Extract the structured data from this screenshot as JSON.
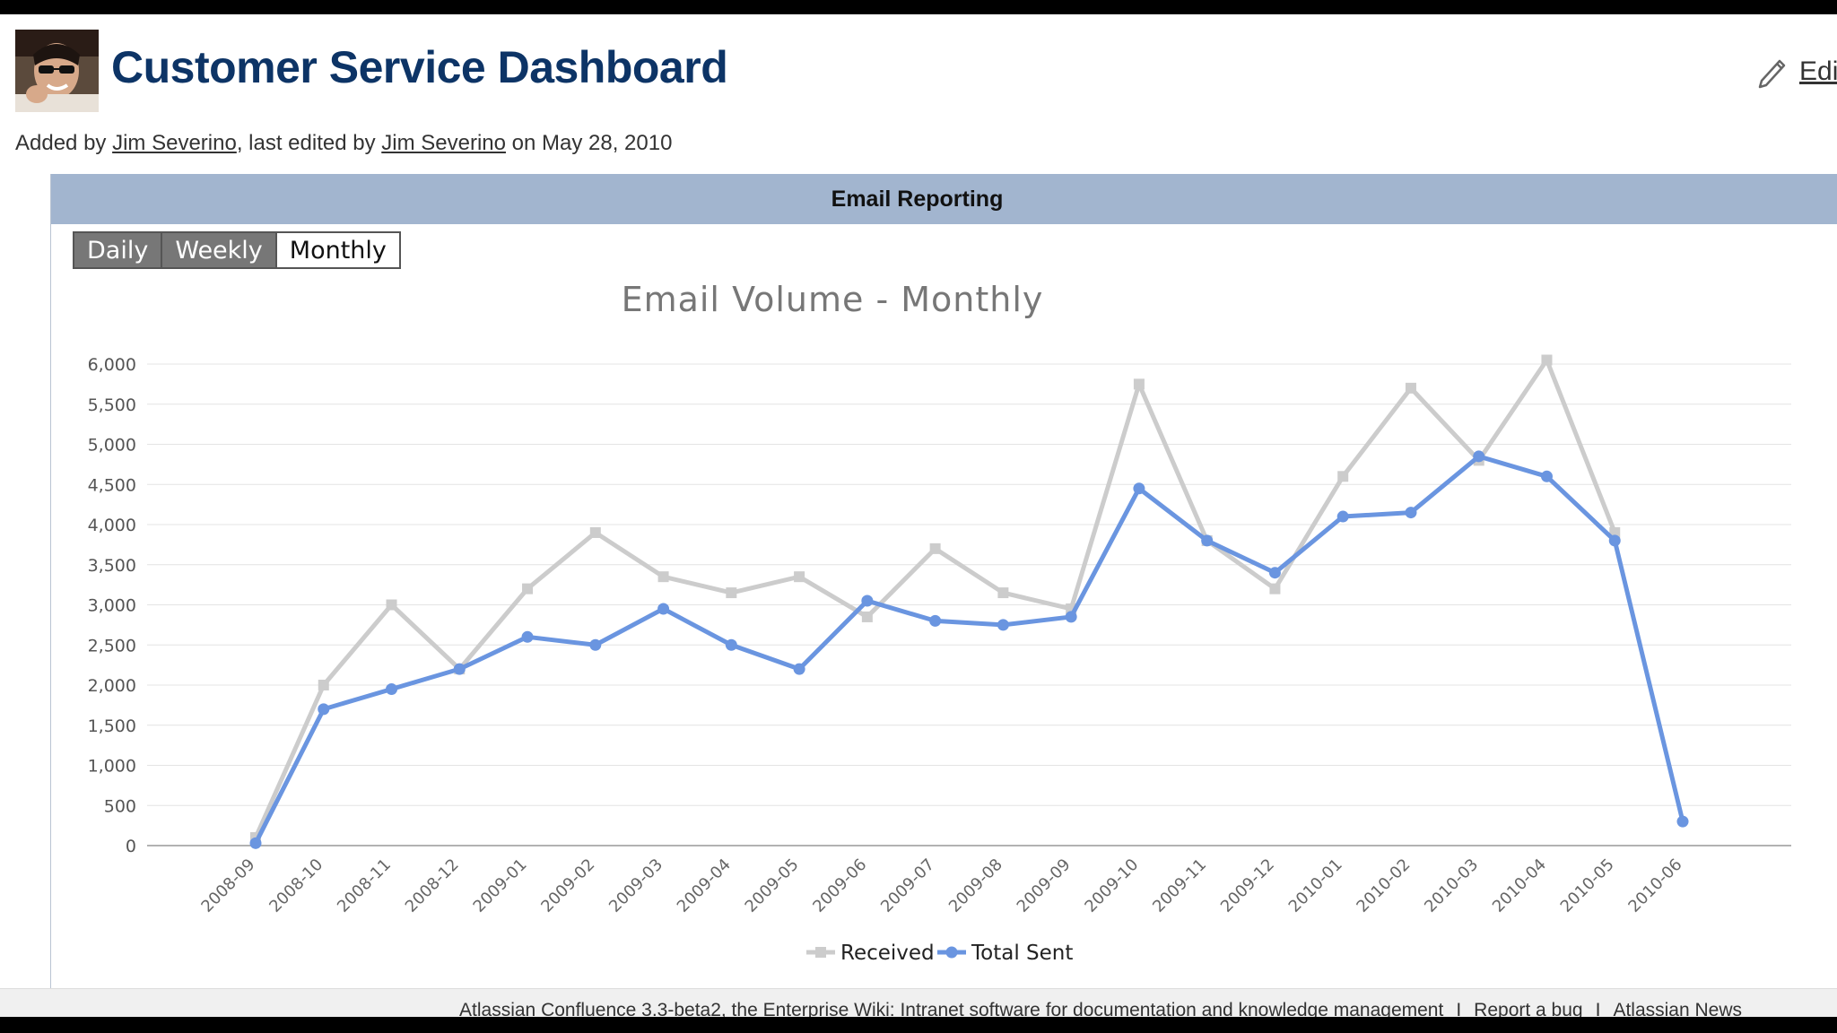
{
  "page": {
    "title": "Customer Service Dashboard",
    "edit_label": "Edi",
    "byline": {
      "added_by_prefix": "Added by ",
      "added_by_user": "Jim Severino",
      "last_edited_prefix": ", last edited by ",
      "last_edited_user": "Jim Severino",
      "date_text": " on May 28, 2010"
    }
  },
  "panel": {
    "header": "Email Reporting",
    "tabs": [
      {
        "label": "Daily",
        "active": false
      },
      {
        "label": "Weekly",
        "active": false
      },
      {
        "label": "Monthly",
        "active": true
      }
    ]
  },
  "footer": {
    "product_text": "Atlassian Confluence 3.3-beta2, the Enterprise Wiki: Intranet software for documentation and knowledge management",
    "separator": "I",
    "report_bug": "Report a bug",
    "news": "Atlassian News"
  },
  "chart_data": {
    "type": "line",
    "title": "Email Volume - Monthly",
    "xlabel": "",
    "ylabel": "",
    "ylim": [
      0,
      6000
    ],
    "yticks": [
      0,
      500,
      1000,
      1500,
      2000,
      2500,
      3000,
      3500,
      4000,
      4500,
      5000,
      5500,
      6000
    ],
    "ytick_labels": [
      "0",
      "500",
      "1,000",
      "1,500",
      "2,000",
      "2,500",
      "3,000",
      "3,500",
      "4,000",
      "4,500",
      "5,000",
      "5,500",
      "6,000"
    ],
    "grid": true,
    "legend_position": "bottom",
    "categories": [
      "2008-09",
      "2008-10",
      "2008-11",
      "2008-12",
      "2009-01",
      "2009-02",
      "2009-03",
      "2009-04",
      "2009-05",
      "2009-06",
      "2009-07",
      "2009-08",
      "2009-09",
      "2009-10",
      "2009-11",
      "2009-12",
      "2010-01",
      "2010-02",
      "2010-03",
      "2010-04",
      "2010-05",
      "2010-06"
    ],
    "series": [
      {
        "name": "Received",
        "color": "#cccccc",
        "marker": "square",
        "values": [
          100,
          2000,
          3000,
          2200,
          3200,
          3900,
          3350,
          3150,
          3350,
          2850,
          3700,
          3150,
          2950,
          5750,
          3800,
          3200,
          4600,
          5700,
          4800,
          6050,
          3900,
          null
        ]
      },
      {
        "name": "Total Sent",
        "color": "#6a95e0",
        "marker": "circle",
        "values": [
          30,
          1700,
          1950,
          2200,
          2600,
          2500,
          2950,
          2500,
          2200,
          3050,
          2800,
          2750,
          2850,
          4450,
          3800,
          3400,
          4100,
          4150,
          4850,
          4600,
          3800,
          300
        ]
      }
    ]
  }
}
